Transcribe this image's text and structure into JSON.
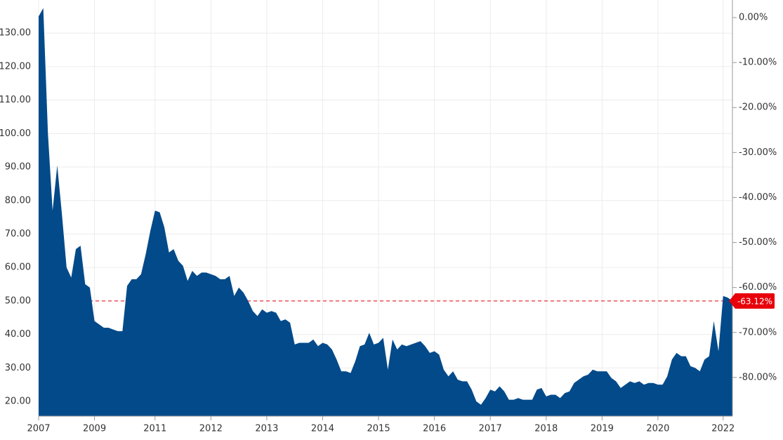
{
  "chart_data": {
    "type": "area",
    "categories": [
      "2007",
      null,
      null,
      null,
      null,
      null,
      null,
      null,
      null,
      null,
      null,
      null,
      "2009",
      null,
      null,
      null,
      null,
      null,
      null,
      null,
      null,
      null,
      null,
      null,
      null,
      "2011",
      null,
      null,
      null,
      null,
      null,
      null,
      null,
      null,
      null,
      null,
      null,
      "2012",
      null,
      null,
      null,
      null,
      null,
      null,
      null,
      null,
      null,
      null,
      null,
      "2013",
      null,
      null,
      null,
      null,
      null,
      null,
      null,
      null,
      null,
      null,
      null,
      "2014",
      null,
      null,
      null,
      null,
      null,
      null,
      null,
      null,
      null,
      null,
      null,
      "2015",
      null,
      null,
      null,
      null,
      null,
      null,
      null,
      null,
      null,
      null,
      null,
      "2016",
      null,
      null,
      null,
      null,
      null,
      null,
      null,
      null,
      null,
      null,
      null,
      "2017",
      null,
      null,
      null,
      null,
      null,
      null,
      null,
      null,
      null,
      null,
      null,
      "2018",
      null,
      null,
      null,
      null,
      null,
      null,
      null,
      null,
      null,
      null,
      null,
      "2019",
      null,
      null,
      null,
      null,
      null,
      null,
      null,
      null,
      null,
      null,
      null,
      "2020",
      null,
      null,
      null,
      null,
      null,
      null,
      null,
      null,
      null,
      null,
      null,
      null,
      null,
      "2022",
      null,
      null
    ],
    "values": [
      135,
      137.5,
      100,
      77,
      90.5,
      76,
      60,
      57,
      65.5,
      66.5,
      55,
      54,
      44,
      43,
      42,
      42,
      41.5,
      41,
      41,
      54.5,
      56.5,
      56.5,
      58,
      64,
      71,
      77,
      76.5,
      72,
      64.5,
      65.5,
      62,
      60.5,
      56,
      59,
      57.5,
      58.5,
      58.5,
      58,
      57.5,
      56.5,
      56.5,
      57.5,
      51.5,
      54,
      52.5,
      50,
      47,
      45.5,
      47.5,
      46.5,
      47,
      46.5,
      44,
      44.5,
      43.5,
      37,
      37.5,
      37.5,
      37.5,
      38.5,
      36.5,
      37.5,
      37,
      35.5,
      32.5,
      29,
      29,
      28.5,
      32,
      36.5,
      37,
      40.5,
      37,
      37.5,
      39,
      29.5,
      38.5,
      35.5,
      37,
      36.5,
      37,
      37.5,
      38,
      36.5,
      34.5,
      35,
      34,
      29.5,
      27.5,
      29,
      26.5,
      26,
      26,
      23.5,
      20,
      19,
      21,
      23.5,
      23,
      24.5,
      23,
      20.5,
      20.5,
      21,
      20.5,
      20.5,
      20.5,
      23.5,
      24,
      21.5,
      22,
      22,
      21,
      22.5,
      23,
      25.5,
      26.5,
      27.5,
      28,
      29.5,
      29,
      29,
      29,
      27,
      26,
      24,
      25,
      26,
      25.5,
      26,
      25,
      25.5,
      25.5,
      25,
      25,
      27.5,
      32.5,
      34.5,
      33.5,
      33.5,
      30.5,
      30,
      29,
      32.5,
      33.5,
      44,
      35,
      51.5,
      51,
      50
    ],
    "color": "#034a8a",
    "ylim": [
      15.6,
      139.9
    ],
    "yticks": [
      {
        "value": 20,
        "label": "20.00"
      },
      {
        "value": 30,
        "label": "30.00"
      },
      {
        "value": 40,
        "label": "40.00"
      },
      {
        "value": 50,
        "label": "50.00"
      },
      {
        "value": 60,
        "label": "60.00"
      },
      {
        "value": 70,
        "label": "70.00"
      },
      {
        "value": 80,
        "label": "80.00"
      },
      {
        "value": 90,
        "label": "90.00"
      },
      {
        "value": 100,
        "label": "100.00"
      },
      {
        "value": 110,
        "label": "110.00"
      },
      {
        "value": 120,
        "label": "120.00"
      },
      {
        "value": 130,
        "label": "130.00"
      }
    ],
    "y2lim": [
      -88.6,
      3.9
    ],
    "y2ticks": [
      {
        "value": 0,
        "label": "0.00%"
      },
      {
        "value": -10,
        "label": "-10.00%"
      },
      {
        "value": -20,
        "label": "-20.00%"
      },
      {
        "value": -30,
        "label": "-30.00%"
      },
      {
        "value": -40,
        "label": "-40.00%"
      },
      {
        "value": -50,
        "label": "-50.00%"
      },
      {
        "value": -60,
        "label": "-60.00%"
      },
      {
        "value": -70,
        "label": "-70.00%"
      },
      {
        "value": -80,
        "label": "-80.00%"
      }
    ],
    "reference_line": {
      "value": 50,
      "label": "-63.12%",
      "color": "#e8000b"
    },
    "grid": true
  }
}
